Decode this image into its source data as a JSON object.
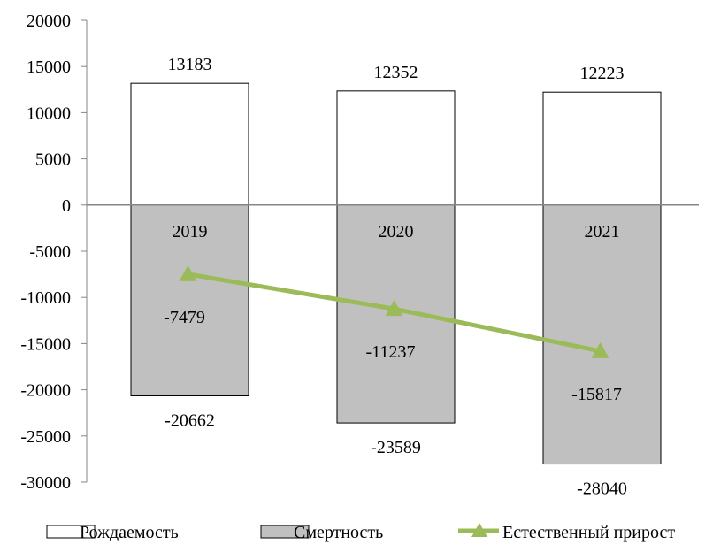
{
  "chart_data": {
    "type": "bar",
    "categories": [
      "2019",
      "2020",
      "2021"
    ],
    "ylim": [
      -30000,
      20000
    ],
    "yticks": [
      20000,
      15000,
      10000,
      5000,
      0,
      -5000,
      -10000,
      -15000,
      -20000,
      -25000,
      -30000
    ],
    "grid": false,
    "legend_position": "bottom",
    "series": [
      {
        "name": "Рождаемость",
        "kind": "bar",
        "values": [
          13183,
          12352,
          12223
        ],
        "color": "#ffffff",
        "stroke": "#000000"
      },
      {
        "name": "Смертность",
        "kind": "bar",
        "values": [
          -20662,
          -23589,
          -28040
        ],
        "color": "#c0c0c0",
        "stroke": "#000000"
      },
      {
        "name": "Естественный прирост",
        "kind": "line",
        "marker": "triangle",
        "values": [
          -7479,
          -11237,
          -15817
        ],
        "color": "#9bbb59"
      }
    ]
  }
}
